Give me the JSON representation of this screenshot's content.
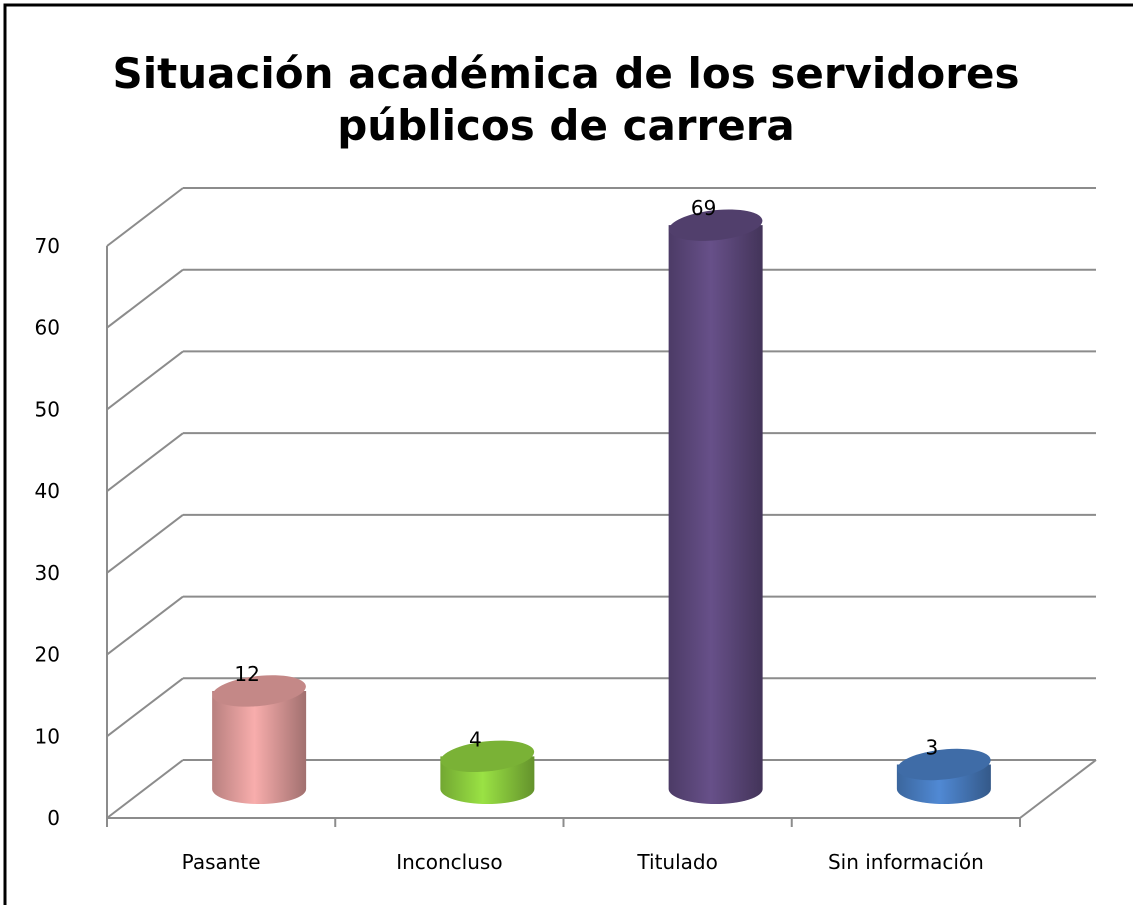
{
  "chart_data": {
    "type": "bar3d",
    "title": [
      "Situación académica de los servidores",
      "públicos de carrera"
    ],
    "categories": [
      "Pasante",
      "Inconcluso",
      "Titulado",
      "Sin información"
    ],
    "values": [
      12,
      4,
      69,
      3
    ],
    "colors": [
      "#e6a09f",
      "#8fd13f",
      "#5f4a7f",
      "#4a7fc4"
    ],
    "ylim": [
      0,
      70
    ],
    "yticks": [
      0,
      10,
      20,
      30,
      40,
      50,
      60,
      70
    ],
    "grid": true
  }
}
